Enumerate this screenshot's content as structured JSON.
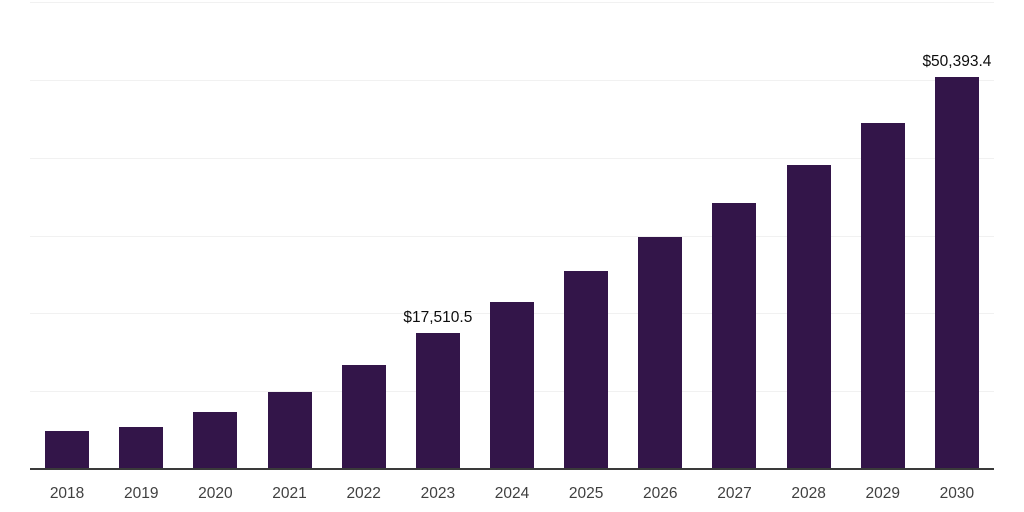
{
  "chart_data": {
    "type": "bar",
    "title": "",
    "xlabel": "",
    "ylabel": "",
    "categories": [
      "2018",
      "2019",
      "2020",
      "2021",
      "2022",
      "2023",
      "2024",
      "2025",
      "2026",
      "2027",
      "2028",
      "2029",
      "2030"
    ],
    "values": [
      4900,
      5400,
      7300,
      9900,
      13350,
      17510.5,
      21400,
      25500,
      29800,
      34200,
      39000,
      44400,
      50393.4
    ],
    "data_labels": [
      {
        "index": 5,
        "text": "$17,510.5"
      },
      {
        "index": 12,
        "text": "$50,393.4"
      }
    ],
    "ylim": [
      0,
      60000
    ],
    "gridline_step": 10000,
    "grid": true,
    "legend_position": "none",
    "colors": {
      "bar": "#331549",
      "gridline": "#f1f1f1",
      "axis_line": "#3a3a3a",
      "tick_label": "#404040",
      "data_label": "#0d0d0d",
      "background": "#ffffff"
    }
  }
}
